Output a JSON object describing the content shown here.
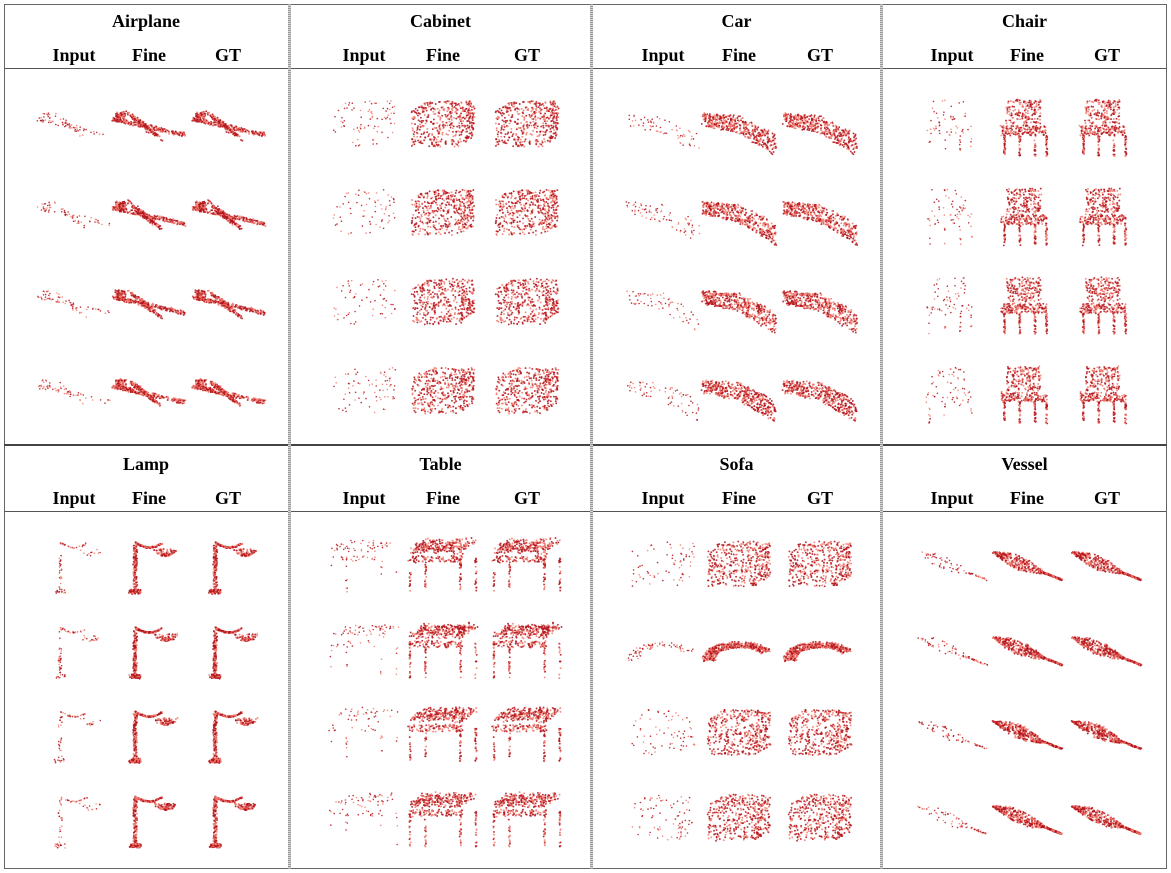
{
  "figure": {
    "column_headers": [
      "Input",
      "Fine",
      "GT"
    ],
    "categories": [
      {
        "name": "Airplane",
        "shapes": [
          "jet",
          "jet",
          "jet",
          "jet"
        ]
      },
      {
        "name": "Cabinet",
        "shapes": [
          "box",
          "box",
          "box",
          "box"
        ]
      },
      {
        "name": "Car",
        "shapes": [
          "car",
          "car",
          "car",
          "car"
        ]
      },
      {
        "name": "Chair",
        "shapes": [
          "chair",
          "chair",
          "chair",
          "chair"
        ]
      },
      {
        "name": "Lamp",
        "shapes": [
          "lamp",
          "lamp",
          "lamp",
          "lamp"
        ]
      },
      {
        "name": "Table",
        "shapes": [
          "table",
          "table",
          "table",
          "table"
        ]
      },
      {
        "name": "Sofa",
        "shapes": [
          "box",
          "sofa",
          "box",
          "box"
        ]
      },
      {
        "name": "Vessel",
        "shapes": [
          "boat",
          "boat",
          "boat",
          "boat"
        ]
      }
    ],
    "point_color_dark": "#b3131a",
    "point_color_light": "#f07a6e"
  }
}
